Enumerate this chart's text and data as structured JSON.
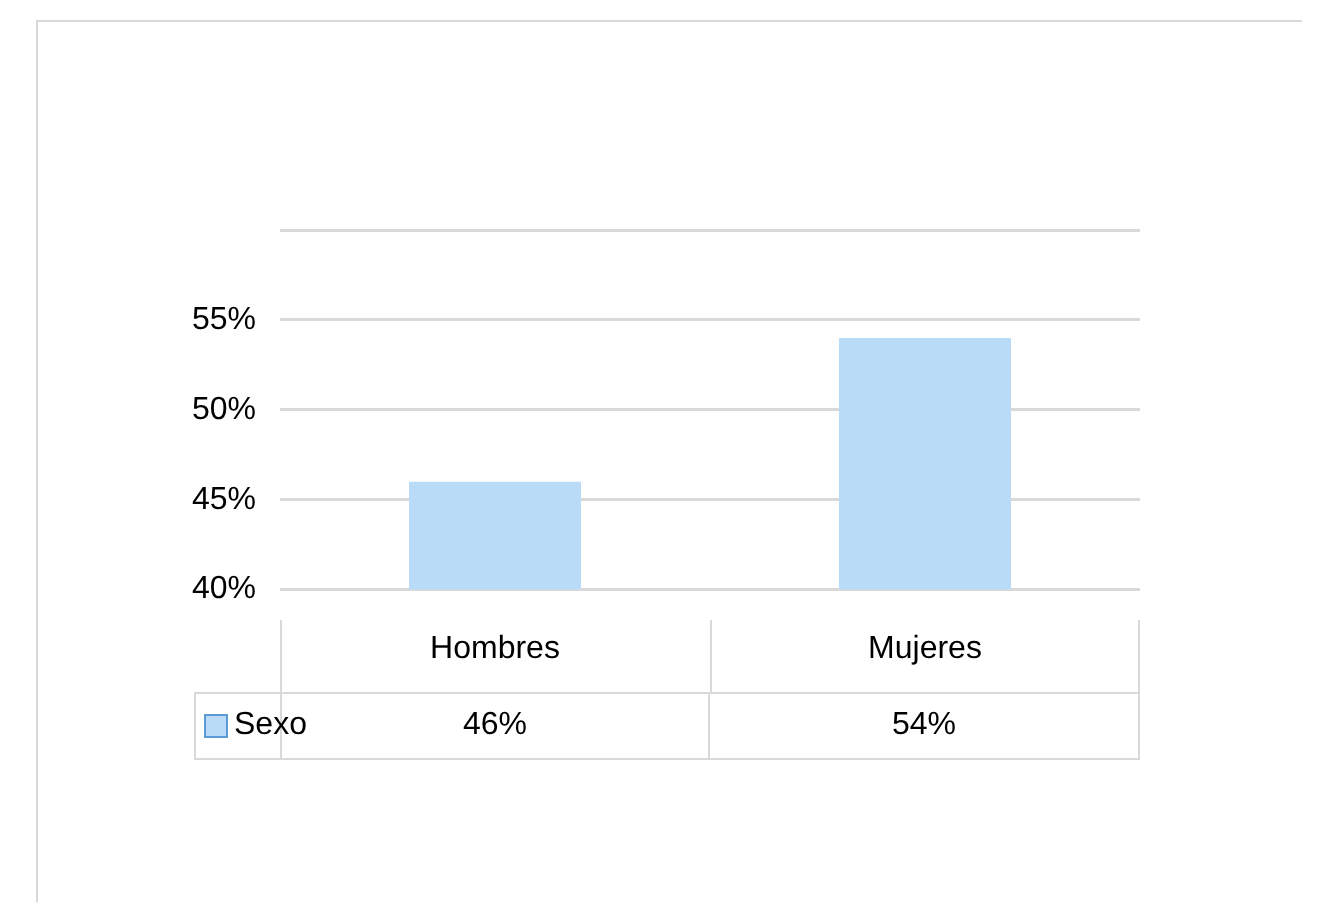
{
  "chart_data": {
    "type": "bar",
    "categories": [
      "Hombres",
      "Mujeres"
    ],
    "series": [
      {
        "name": "Sexo",
        "color": "#b9dbf7",
        "values": [
          46,
          54
        ],
        "value_labels": [
          "46%",
          "54%"
        ]
      }
    ],
    "ylim": [
      40,
      60
    ],
    "yticks": [
      {
        "value": 40,
        "label": "40%"
      },
      {
        "value": 45,
        "label": "45%"
      },
      {
        "value": 50,
        "label": "50%"
      },
      {
        "value": 55,
        "label": "55%"
      },
      {
        "value": 60,
        "label": null
      }
    ],
    "grid": "y",
    "legend": "bottom left"
  }
}
